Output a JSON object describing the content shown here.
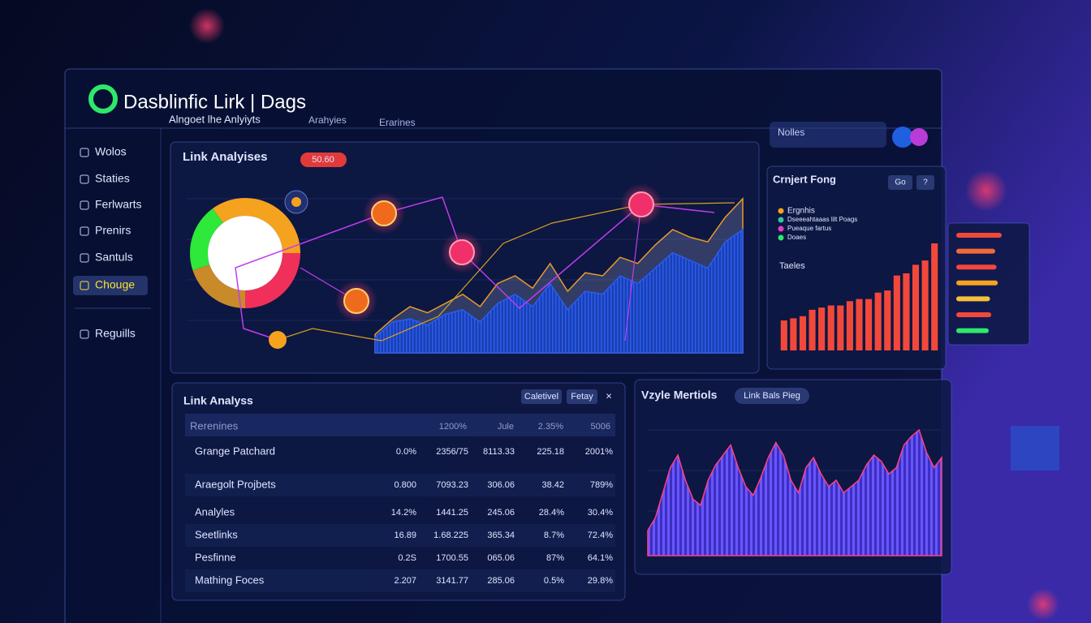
{
  "header": {
    "title": "Dasblinfic Lirk | Dags",
    "subtitle": "Alngoet lhe Anlyiyts",
    "tabs": [
      "Arahyies",
      "Erarines"
    ],
    "search": "Nolles"
  },
  "sidebar": {
    "items": [
      "Wolos",
      "Staties",
      "Ferlwarts",
      "Prenirs",
      "Santuls",
      "Chouge"
    ],
    "footer": "Reguills"
  },
  "link_panel": {
    "title": "Link Analyises",
    "badge": "50.60",
    "donut": {
      "values": [
        35,
        25,
        20,
        20
      ],
      "colors": [
        "#f5a21e",
        "#f0305a",
        "#c98a2a",
        "#2ee83a"
      ]
    },
    "area": {
      "ylim": [
        0,
        100
      ],
      "values": [
        10,
        20,
        22,
        18,
        25,
        28,
        20,
        32,
        38,
        30,
        45,
        28,
        40,
        38,
        50,
        45,
        55,
        65,
        60,
        55,
        72,
        80
      ],
      "upper": [
        12,
        22,
        30,
        26,
        32,
        38,
        30,
        45,
        50,
        42,
        58,
        40,
        52,
        50,
        62,
        58,
        70,
        80,
        75,
        72,
        88,
        100
      ],
      "color": "#2b5cf0",
      "upper_color": "#e89a2a"
    }
  },
  "bars_panel": {
    "title": "Crnjert Fong",
    "buttons": [
      "Go",
      "?"
    ],
    "section": "Taeles",
    "legend": [
      {
        "name": "Ergnhis",
        "color": "#f5a21e"
      },
      {
        "name": "Dseeeahtaaas lilt Poags",
        "color": "#2ec8a0"
      },
      {
        "name": "Pueaque fartus",
        "color": "#e040c0"
      },
      {
        "name": "Doaes",
        "color": "#2ee86a"
      }
    ],
    "ylim": [
      0,
      100
    ],
    "color": "#f2483a",
    "values": [
      28,
      30,
      32,
      38,
      40,
      42,
      42,
      46,
      48,
      48,
      54,
      56,
      70,
      72,
      80,
      84,
      100
    ]
  },
  "side_list": {
    "xlim": [
      0,
      100
    ],
    "values": [
      70,
      60,
      62,
      64,
      52,
      54,
      50
    ],
    "colors": [
      "#f2483a",
      "#f26a3a",
      "#f2483a",
      "#f5a21e",
      "#f5c03a",
      "#f2483a",
      "#2ee86a"
    ]
  },
  "table_panel": {
    "title": "Link Analyss",
    "buttons": [
      "Caletivel",
      "Fetay",
      "×"
    ],
    "header": [
      "Rerenines",
      "1200%",
      "Jule",
      "2.35%",
      "5006"
    ],
    "rows": [
      [
        "Grange Patchard",
        "0.0%",
        "2356/75",
        "8113.33",
        "225.18",
        "2001%"
      ],
      [
        "Araegolt Projbets",
        "0.800",
        "7093.23",
        "306.06",
        "38.42",
        "789%"
      ],
      [
        "Analyles",
        "14.2%",
        "1441.25",
        "245.06",
        "28.4%",
        "30.4%"
      ],
      [
        "Seetlinks",
        "16.89",
        "1.68.225",
        "365.34",
        "8.7%",
        "72.4%"
      ],
      [
        "Pesfinne",
        "0.2S",
        "1700.55",
        "065.06",
        "87%",
        "64.1%"
      ],
      [
        "Mathing Foces",
        "2.207",
        "3141.77",
        "285.06",
        "0.5%",
        "29.8%"
      ]
    ]
  },
  "metrics_panel": {
    "title": "Vzyle Mertiols",
    "tag": "Link Bals Pieg",
    "ylim": [
      0,
      100
    ],
    "line_color": "#ff4080",
    "values": [
      20,
      30,
      50,
      70,
      80,
      60,
      45,
      40,
      60,
      72,
      80,
      88,
      70,
      55,
      48,
      62,
      78,
      90,
      80,
      60,
      50,
      70,
      78,
      65,
      55,
      60,
      50,
      55,
      60,
      72,
      80,
      75,
      65,
      70,
      88,
      95,
      100,
      82,
      70,
      78
    ]
  }
}
